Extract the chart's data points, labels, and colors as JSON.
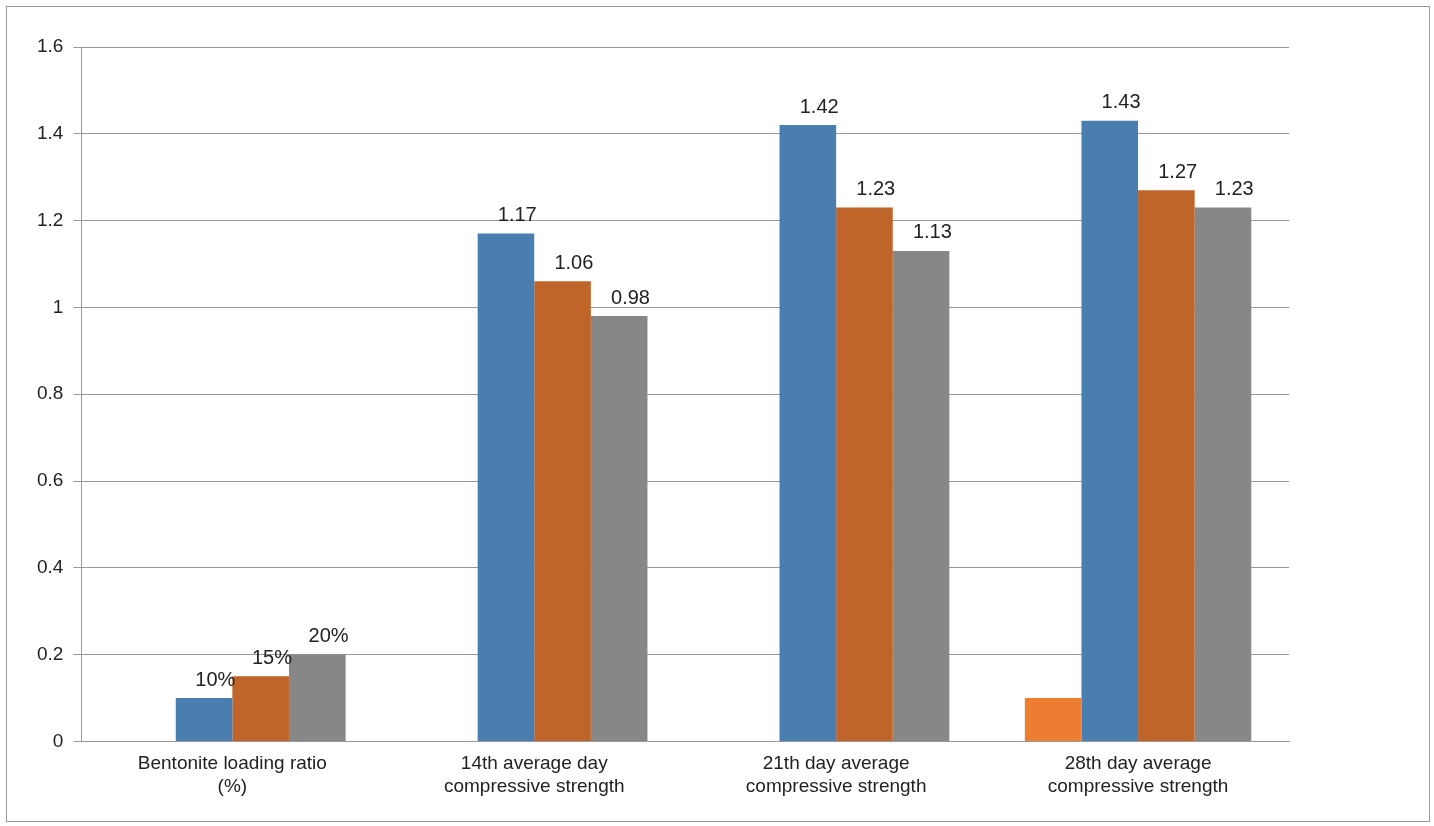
{
  "chart_data": {
    "type": "bar",
    "categories": [
      "Bentonite loading ratio (%)",
      "14th average day compressive strength",
      "21th day average compressive strength",
      "28th day average compressive strength"
    ],
    "series": [
      {
        "color": "#ed7d31",
        "values": [
          null,
          null,
          null,
          0.1
        ]
      },
      {
        "color": "#4a7eb0",
        "values": [
          0.1,
          1.17,
          1.42,
          1.43
        ],
        "value_labels": [
          "10%",
          "1.17",
          "1.42",
          "1.43"
        ]
      },
      {
        "color": "#c0652a",
        "values": [
          0.15,
          1.06,
          1.23,
          1.27
        ],
        "value_labels": [
          "15%",
          "1.06",
          "1.23",
          "1.27"
        ]
      },
      {
        "color": "#878787",
        "values": [
          0.2,
          0.98,
          1.13,
          1.23
        ],
        "value_labels": [
          "20%",
          "0.98",
          "1.13",
          "1.23"
        ]
      }
    ],
    "ylim": [
      0,
      1.6
    ],
    "yticks": [
      0,
      0.2,
      0.4,
      0.6,
      0.8,
      1,
      1.2,
      1.4,
      1.6
    ],
    "grid": "y",
    "legend": false
  }
}
